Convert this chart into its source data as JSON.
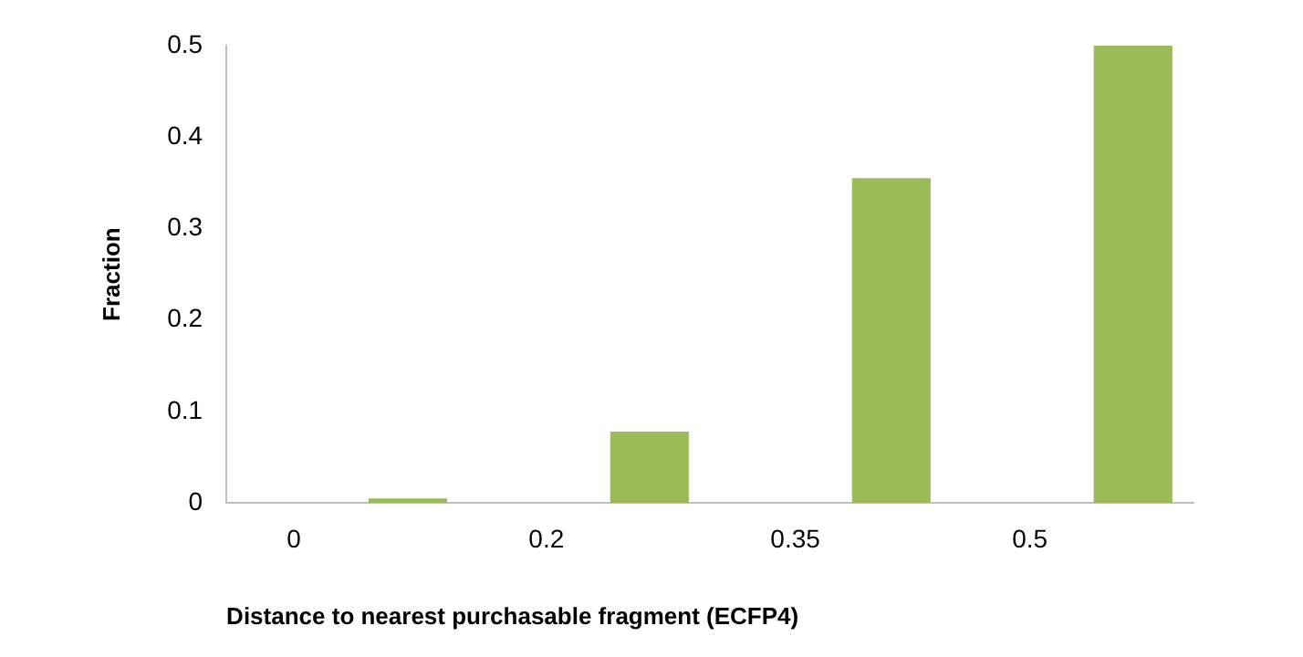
{
  "chart_data": {
    "type": "bar",
    "xlabel": "Distance to nearest purchasable fragment (ECFP4)",
    "ylabel": "Fraction",
    "categories": [
      "0",
      null,
      "0.2",
      null,
      "0.35",
      null,
      "0.5",
      null
    ],
    "values": [
      0,
      0.005,
      0,
      0.078,
      0,
      0.355,
      0,
      0.5
    ],
    "color": "#9bbb59",
    "ylim": [
      0,
      0.5
    ],
    "yticks": [
      0,
      0.1,
      0.2,
      0.3,
      0.4,
      0.5
    ],
    "grid": false,
    "legend": false
  }
}
